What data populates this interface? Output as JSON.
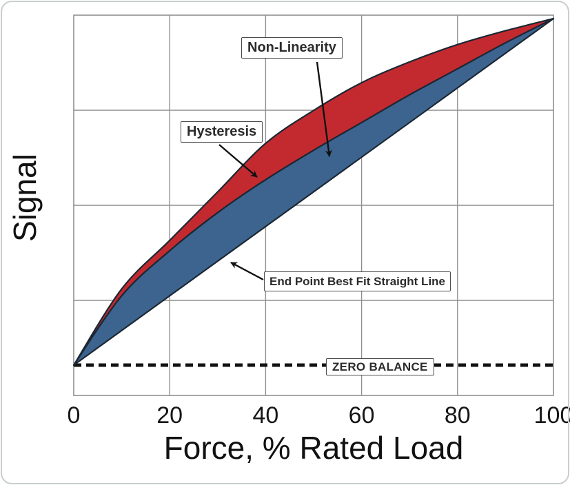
{
  "page": {
    "background": "#ffffff",
    "card_border_color": "#c9cdd0"
  },
  "chart_data": {
    "type": "area",
    "title": "",
    "xlabel": "Force, % Rated Load",
    "ylabel": "Signal",
    "xlim": [
      0,
      100
    ],
    "ylim_percent_of_rated_output": [
      0,
      100
    ],
    "x_ticks": [
      0,
      20,
      40,
      60,
      80,
      100
    ],
    "x_tick_labels": [
      "0",
      "20",
      "40",
      "60",
      "80",
      "100"
    ],
    "y_axis": {
      "tick_labels_shown": false,
      "grid_divisions": 4
    },
    "grid": "on",
    "legend": "none",
    "colors": {
      "hysteresis_fill": "#c32a30",
      "non_linearity_fill": "#3c648f",
      "outline": "#1c2733",
      "grid": "#8f8f8f",
      "zero_line": "#111111"
    },
    "series": [
      {
        "name": "End Point Best Fit Straight Line",
        "type": "line",
        "x": [
          0,
          100
        ],
        "y": [
          0,
          100
        ]
      },
      {
        "name": "Loading curve",
        "type": "line",
        "x": [
          0,
          10,
          20,
          30,
          40,
          50,
          60,
          70,
          80,
          90,
          100
        ],
        "y": [
          0,
          20,
          33,
          44,
          53.5,
          62,
          70,
          78,
          85.5,
          93,
          100
        ]
      },
      {
        "name": "Unloading curve",
        "type": "line",
        "x": [
          0,
          10,
          20,
          30,
          40,
          50,
          60,
          70,
          80,
          90,
          100
        ],
        "y": [
          0,
          22,
          36,
          50,
          64,
          73.5,
          81.5,
          87.5,
          92.5,
          96.5,
          100
        ]
      }
    ],
    "regions": [
      {
        "name": "Hysteresis",
        "between": [
          "Unloading curve",
          "Loading curve"
        ],
        "color": "#c32a30"
      },
      {
        "name": "Non-Linearity",
        "between": [
          "Loading curve",
          "End Point Best Fit Straight Line"
        ],
        "color": "#3c648f"
      }
    ],
    "zero_balance": {
      "y": 0,
      "style": "dashed"
    }
  },
  "annotations": {
    "non_linearity": "Non-Linearity",
    "hysteresis": "Hysteresis",
    "end_point": "End Point Best Fit Straight Line",
    "zero_balance": "ZERO BALANCE"
  }
}
